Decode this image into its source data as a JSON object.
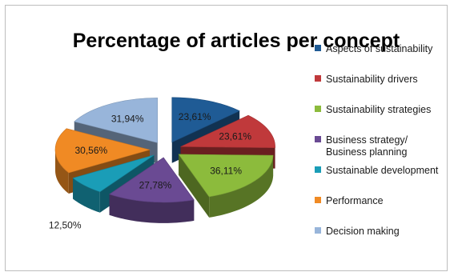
{
  "chart_data": {
    "type": "pie",
    "title": "Percentage of articles per concept",
    "legend_position": "right",
    "slices": [
      {
        "name": "Aspects of sustainability",
        "value": 23.61,
        "label": "23,61%",
        "color": "#1f5b95"
      },
      {
        "name": "Sustainability drivers",
        "value": 23.61,
        "label": "23,61%",
        "color": "#c0393b"
      },
      {
        "name": "Sustainability strategies",
        "value": 36.11,
        "label": "36,11%",
        "color": "#8cbb3c"
      },
      {
        "name": "Business strategy/\nBusiness planning",
        "value": 27.78,
        "label": "27,78%",
        "color": "#6a4a93"
      },
      {
        "name": "Sustainable development",
        "value": 12.5,
        "label": "12,50%",
        "color": "#1a9db7"
      },
      {
        "name": "Performance",
        "value": 30.56,
        "label": "30,56%",
        "color": "#f08a24"
      },
      {
        "name": "Decision making",
        "value": 31.94,
        "label": "31,94%",
        "color": "#98b5da"
      }
    ]
  }
}
